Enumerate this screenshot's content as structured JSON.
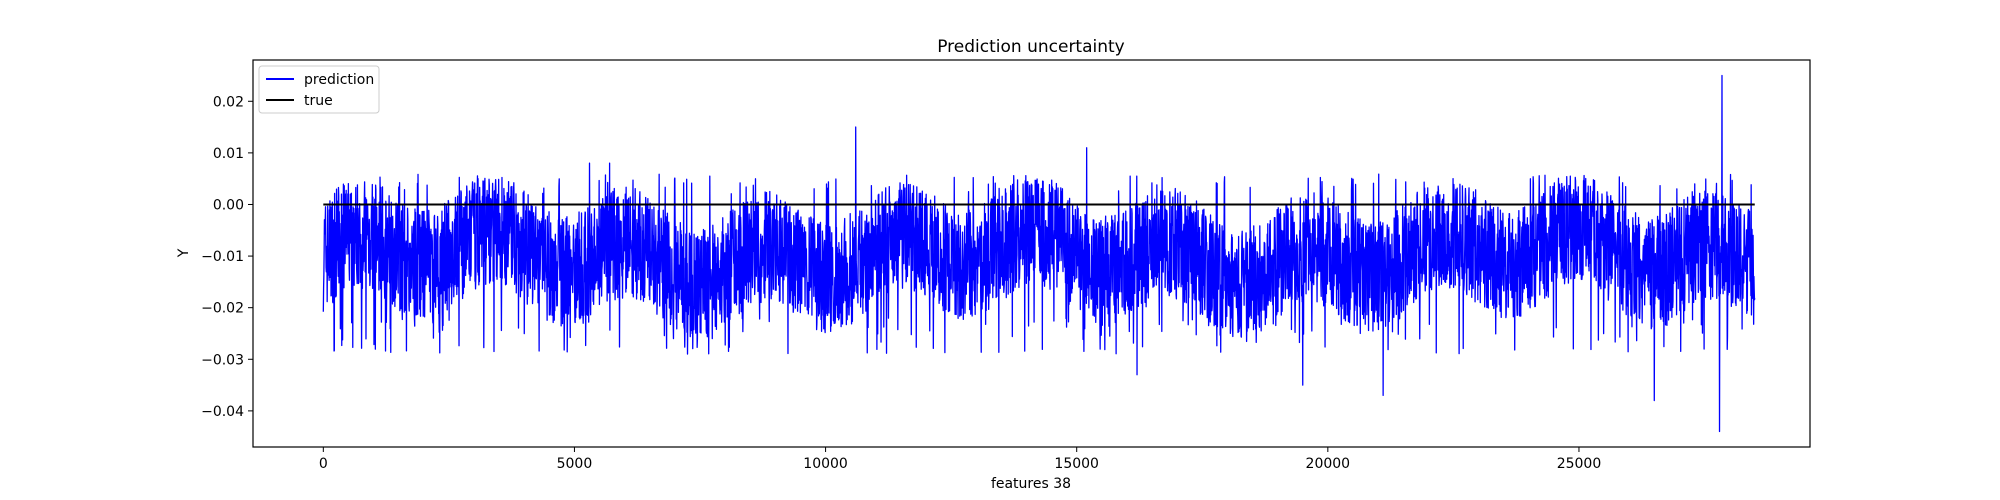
{
  "chart_data": {
    "type": "line",
    "title": "Prediction uncertainty",
    "xlabel": "features 38",
    "ylabel": "Y",
    "xlim": [
      -1400,
      29600
    ],
    "ylim": [
      -0.047,
      0.028
    ],
    "xticks": [
      0,
      5000,
      10000,
      15000,
      20000,
      25000
    ],
    "xtick_labels": [
      "0",
      "5000",
      "10000",
      "15000",
      "20000",
      "25000"
    ],
    "yticks": [
      -0.04,
      -0.03,
      -0.02,
      -0.01,
      0.0,
      0.01,
      0.02
    ],
    "ytick_labels": [
      "−0.04",
      "−0.03",
      "−0.02",
      "−0.01",
      "0.00",
      "0.01",
      "0.02"
    ],
    "grid": false,
    "legend_position": "top-left",
    "series": [
      {
        "name": "prediction",
        "color": "#0000ff",
        "x_range": [
          0,
          28500
        ],
        "typical_range": [
          -0.022,
          0.002
        ],
        "center": -0.01,
        "notable_points": [
          {
            "x": 5300,
            "y": 0.008
          },
          {
            "x": 5700,
            "y": 0.008
          },
          {
            "x": 10600,
            "y": 0.015
          },
          {
            "x": 15200,
            "y": 0.011
          },
          {
            "x": 16200,
            "y": -0.033
          },
          {
            "x": 19500,
            "y": -0.035
          },
          {
            "x": 21100,
            "y": -0.037
          },
          {
            "x": 26500,
            "y": -0.038
          },
          {
            "x": 27850,
            "y": 0.025
          },
          {
            "x": 27800,
            "y": -0.044
          }
        ]
      },
      {
        "name": "true",
        "color": "#000000",
        "x": [
          0,
          28500
        ],
        "y": [
          0.0,
          0.0
        ]
      }
    ]
  }
}
